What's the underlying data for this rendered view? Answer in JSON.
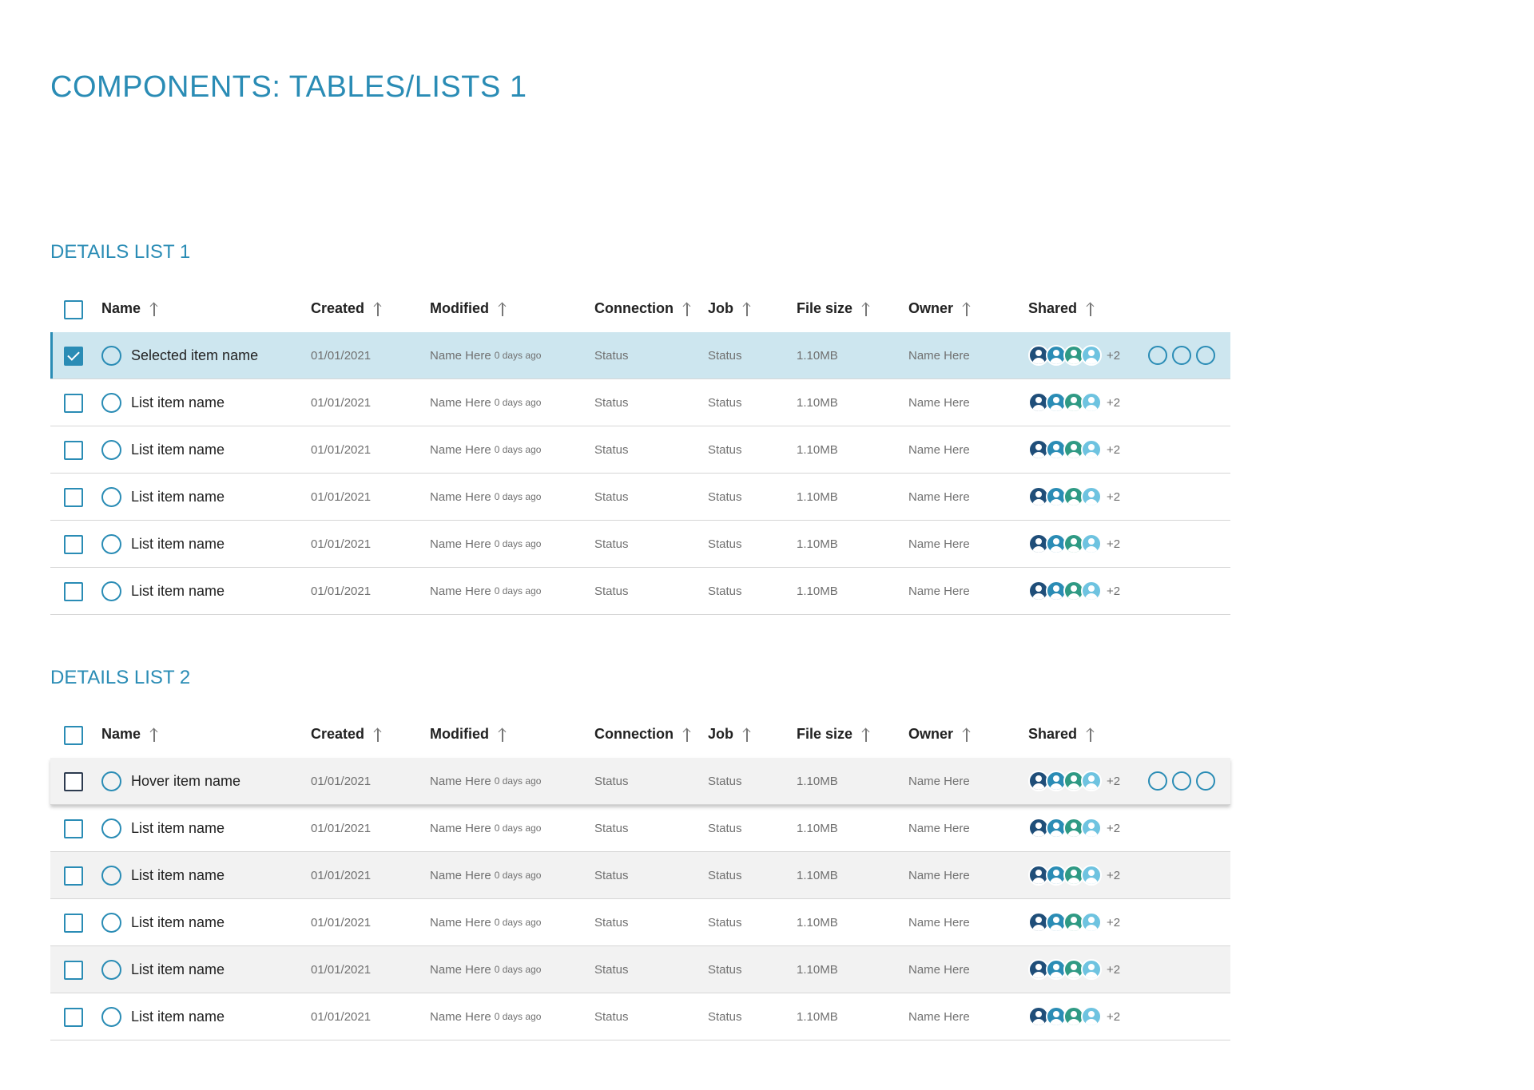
{
  "page_title": "COMPONENTS: TABLES/LISTS 1",
  "columns": {
    "name": "Name",
    "created": "Created",
    "modified": "Modified",
    "connection": "Connection",
    "job": "Job",
    "file_size": "File size",
    "owner": "Owner",
    "shared": "Shared"
  },
  "colors": {
    "accent": "#2a8cb5",
    "selected_bg": "#cde6ef",
    "hover_bg": "#f2f2f2",
    "avatar_1": "#1f4e79",
    "avatar_2": "#2a8cb5",
    "avatar_3": "#2f9a84",
    "avatar_4": "#6ec3e0"
  },
  "list1": {
    "title": "DETAILS LIST 1",
    "rows": [
      {
        "state": "selected",
        "checked": true,
        "name": "Selected item name",
        "created": "01/01/2021",
        "modified_name": "Name Here",
        "modified_ago": "0 days ago",
        "connection": "Status",
        "job": "Status",
        "file_size": "1.10MB",
        "owner": "Name Here",
        "shared_more": "+2",
        "show_actions": true
      },
      {
        "state": "default",
        "checked": false,
        "name": "List item name",
        "created": "01/01/2021",
        "modified_name": "Name Here",
        "modified_ago": "0 days ago",
        "connection": "Status",
        "job": "Status",
        "file_size": "1.10MB",
        "owner": "Name Here",
        "shared_more": "+2",
        "show_actions": false
      },
      {
        "state": "default",
        "checked": false,
        "name": "List item name",
        "created": "01/01/2021",
        "modified_name": "Name Here",
        "modified_ago": "0 days ago",
        "connection": "Status",
        "job": "Status",
        "file_size": "1.10MB",
        "owner": "Name Here",
        "shared_more": "+2",
        "show_actions": false
      },
      {
        "state": "default",
        "checked": false,
        "name": "List item name",
        "created": "01/01/2021",
        "modified_name": "Name Here",
        "modified_ago": "0 days ago",
        "connection": "Status",
        "job": "Status",
        "file_size": "1.10MB",
        "owner": "Name Here",
        "shared_more": "+2",
        "show_actions": false
      },
      {
        "state": "default",
        "checked": false,
        "name": "List item name",
        "created": "01/01/2021",
        "modified_name": "Name Here",
        "modified_ago": "0 days ago",
        "connection": "Status",
        "job": "Status",
        "file_size": "1.10MB",
        "owner": "Name Here",
        "shared_more": "+2",
        "show_actions": false
      },
      {
        "state": "default",
        "checked": false,
        "name": "List item name",
        "created": "01/01/2021",
        "modified_name": "Name Here",
        "modified_ago": "0 days ago",
        "connection": "Status",
        "job": "Status",
        "file_size": "1.10MB",
        "owner": "Name Here",
        "shared_more": "+2",
        "show_actions": false
      }
    ]
  },
  "list2": {
    "title": "DETAILS LIST 2",
    "rows": [
      {
        "state": "hover",
        "checked": false,
        "name": "Hover item name",
        "created": "01/01/2021",
        "modified_name": "Name Here",
        "modified_ago": "0 days ago",
        "connection": "Status",
        "job": "Status",
        "file_size": "1.10MB",
        "owner": "Name Here",
        "shared_more": "+2",
        "show_actions": true
      },
      {
        "state": "default",
        "checked": false,
        "name": "List item name",
        "created": "01/01/2021",
        "modified_name": "Name Here",
        "modified_ago": "0 days ago",
        "connection": "Status",
        "job": "Status",
        "file_size": "1.10MB",
        "owner": "Name Here",
        "shared_more": "+2",
        "show_actions": false
      },
      {
        "state": "striped",
        "checked": false,
        "name": "List item name",
        "created": "01/01/2021",
        "modified_name": "Name Here",
        "modified_ago": "0 days ago",
        "connection": "Status",
        "job": "Status",
        "file_size": "1.10MB",
        "owner": "Name Here",
        "shared_more": "+2",
        "show_actions": false
      },
      {
        "state": "default",
        "checked": false,
        "name": "List item name",
        "created": "01/01/2021",
        "modified_name": "Name Here",
        "modified_ago": "0 days ago",
        "connection": "Status",
        "job": "Status",
        "file_size": "1.10MB",
        "owner": "Name Here",
        "shared_more": "+2",
        "show_actions": false
      },
      {
        "state": "striped",
        "checked": false,
        "name": "List item name",
        "created": "01/01/2021",
        "modified_name": "Name Here",
        "modified_ago": "0 days ago",
        "connection": "Status",
        "job": "Status",
        "file_size": "1.10MB",
        "owner": "Name Here",
        "shared_more": "+2",
        "show_actions": false
      },
      {
        "state": "default",
        "checked": false,
        "name": "List item name",
        "created": "01/01/2021",
        "modified_name": "Name Here",
        "modified_ago": "0 days ago",
        "connection": "Status",
        "job": "Status",
        "file_size": "1.10MB",
        "owner": "Name Here",
        "shared_more": "+2",
        "show_actions": false
      }
    ]
  }
}
